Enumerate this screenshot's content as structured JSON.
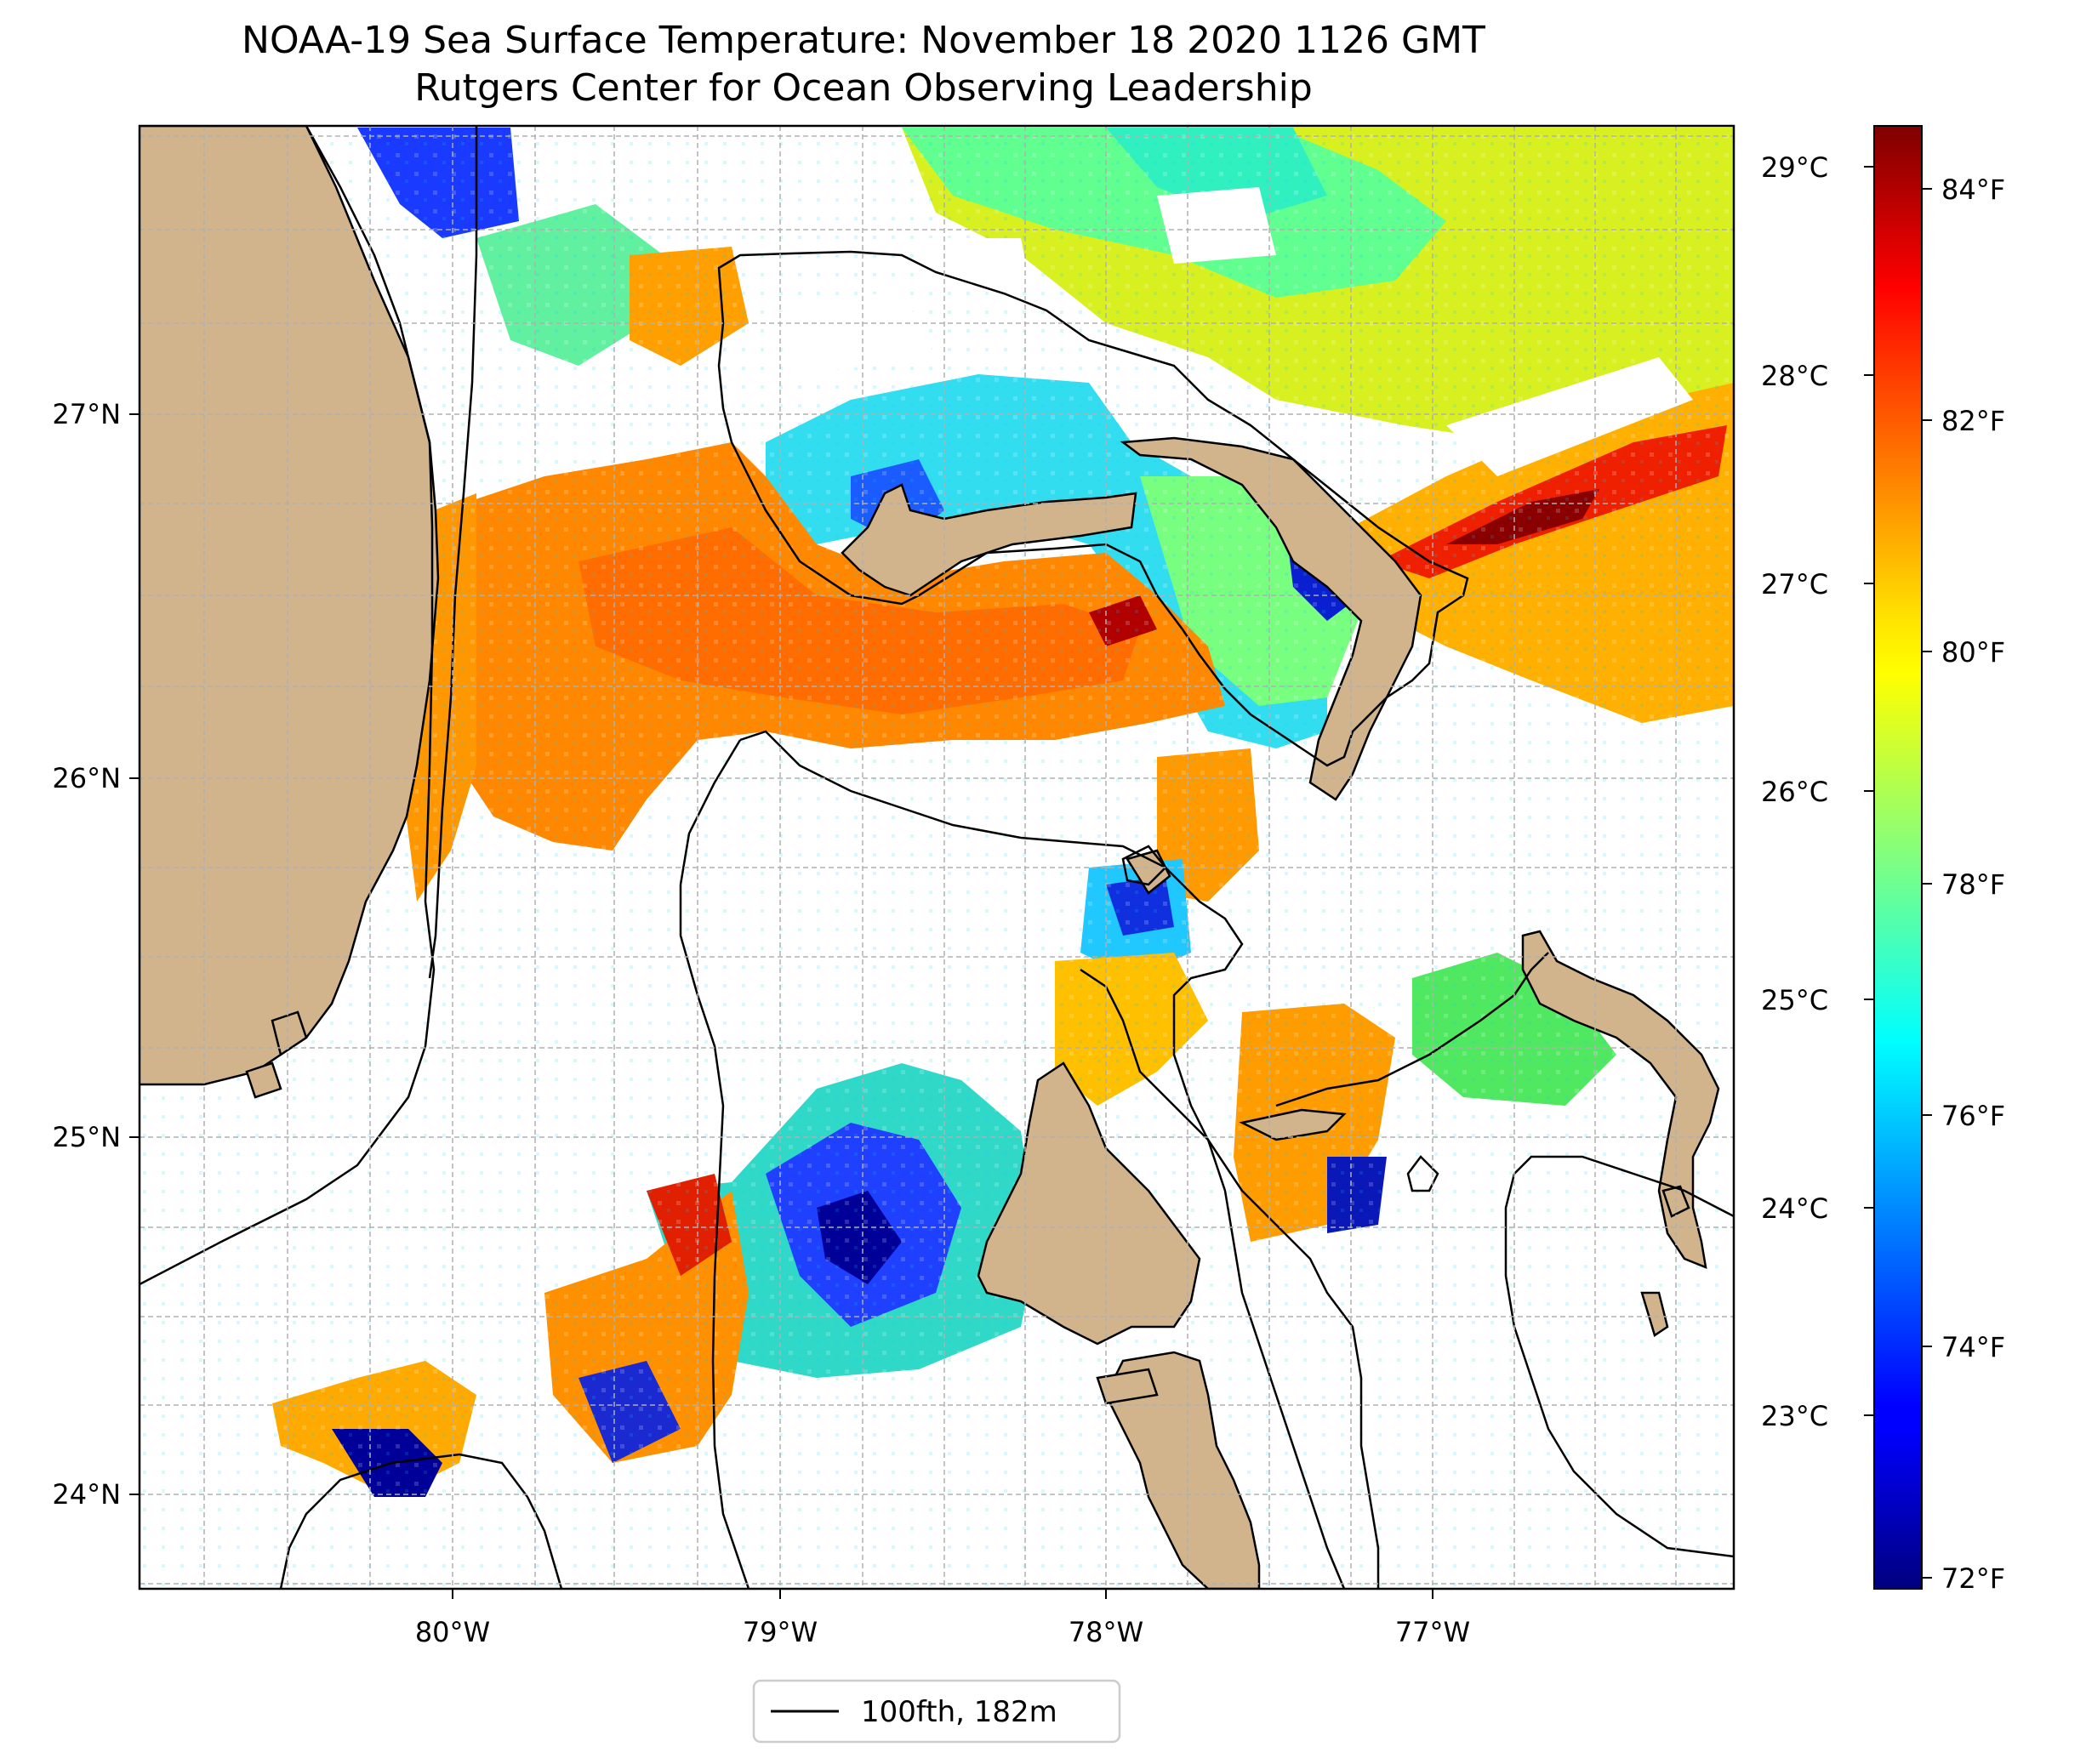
{
  "title": "NOAA-19 Sea Surface Temperature: November 18 2020 1126 GMT",
  "subtitle": "Rutgers Center for Ocean Observing Leadership",
  "axes": {
    "lon_ticks": [
      "80°W",
      "79°W",
      "78°W",
      "77°W"
    ],
    "lat_ticks": [
      "27°N",
      "26°N",
      "25°N",
      "24°N"
    ],
    "celsius_ticks": [
      "29°C",
      "28°C",
      "27°C",
      "26°C",
      "25°C",
      "24°C",
      "23°C"
    ],
    "fahrenheit_ticks": [
      "84°F",
      "82°F",
      "80°F",
      "78°F",
      "76°F",
      "74°F",
      "72°F"
    ]
  },
  "legend": {
    "label": "100fth, 182m"
  },
  "colors": {
    "land": "#d2b48c",
    "contour": "#000000",
    "gridline": "#b0b0b0"
  },
  "colormap": "jet",
  "chart_data": {
    "type": "heatmap",
    "title": "NOAA-19 Sea Surface Temperature: November 18 2020 1126 GMT",
    "subtitle": "Rutgers Center for Ocean Observing Leadership",
    "lon_range": [
      -81.0,
      -76.1
    ],
    "lat_range": [
      23.75,
      27.8
    ],
    "lon_ticks": [
      -80,
      -79,
      -78,
      -77
    ],
    "lat_ticks": [
      27,
      26,
      25,
      24
    ],
    "colorbar": {
      "celsius_ticks": [
        29,
        28,
        27,
        26,
        25,
        24,
        23
      ],
      "fahrenheit_ticks": [
        84,
        82,
        80,
        78,
        76,
        74,
        72
      ],
      "range_f": [
        71.9,
        84.6
      ],
      "colormap": "jet"
    },
    "legend": [
      "100fth, 182m"
    ],
    "grid": true
  }
}
